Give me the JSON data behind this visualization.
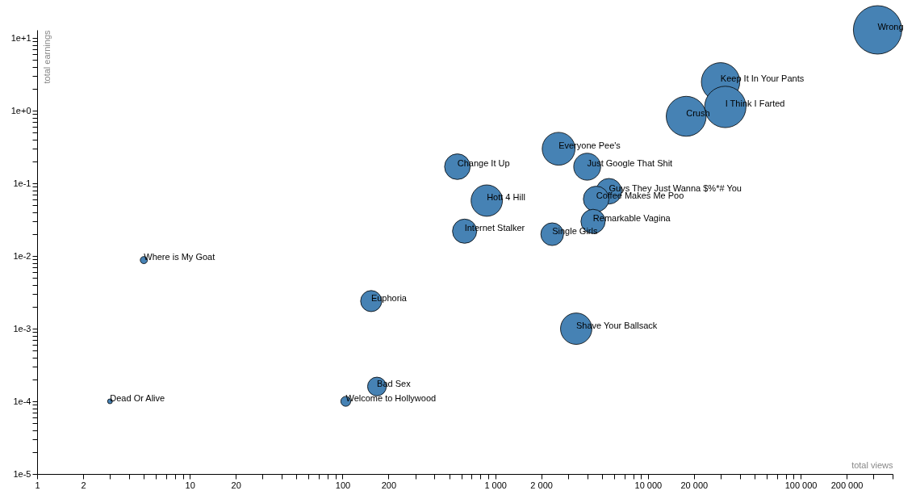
{
  "chart_data": {
    "type": "bubble",
    "xlabel": "total views",
    "ylabel": "total earnings",
    "log": "xy",
    "xlim": [
      1,
      400000
    ],
    "xticks": [
      1,
      2,
      {
        "value": 3,
        "label": null
      },
      {
        "value": 4,
        "label": null
      },
      {
        "value": 5,
        "label": null
      },
      {
        "value": 6,
        "label": null
      },
      {
        "value": 7,
        "label": null
      },
      {
        "value": 8,
        "label": null
      },
      {
        "value": 9,
        "label": null
      },
      10,
      20,
      {
        "value": 30,
        "label": null
      },
      {
        "value": 40,
        "label": null
      },
      {
        "value": 50,
        "label": null
      },
      {
        "value": 60,
        "label": null
      },
      {
        "value": 70,
        "label": null
      },
      {
        "value": 80,
        "label": null
      },
      {
        "value": 90,
        "label": null
      },
      100,
      200,
      {
        "value": 300,
        "label": null
      },
      {
        "value": 400,
        "label": null
      },
      {
        "value": 500,
        "label": null
      },
      {
        "value": 600,
        "label": null
      },
      {
        "value": 700,
        "label": null
      },
      {
        "value": 800,
        "label": null
      },
      {
        "value": 900,
        "label": null
      },
      {
        "value": 1000,
        "label": "1 000"
      },
      {
        "value": 2000,
        "label": "2 000"
      },
      {
        "value": 3000,
        "label": null
      },
      {
        "value": 4000,
        "label": null
      },
      {
        "value": 5000,
        "label": null
      },
      {
        "value": 6000,
        "label": null
      },
      {
        "value": 7000,
        "label": null
      },
      {
        "value": 8000,
        "label": null
      },
      {
        "value": 9000,
        "label": null
      },
      {
        "value": 10000,
        "label": "10 000"
      },
      {
        "value": 20000,
        "label": "20 000"
      },
      {
        "value": 30000,
        "label": null
      },
      {
        "value": 40000,
        "label": null
      },
      {
        "value": 50000,
        "label": null
      },
      {
        "value": 60000,
        "label": null
      },
      {
        "value": 70000,
        "label": null
      },
      {
        "value": 80000,
        "label": null
      },
      {
        "value": 90000,
        "label": null
      },
      {
        "value": 100000,
        "label": "100 000"
      },
      {
        "value": 200000,
        "label": "200 000"
      },
      {
        "value": 300000,
        "label": null
      },
      {
        "value": 400000,
        "label": null
      }
    ],
    "ylim": [
      1e-05,
      13
    ],
    "yticks": [
      {
        "value": 1e-05,
        "label": "1e-5"
      },
      {
        "value": 2e-05,
        "label": null
      },
      {
        "value": 3e-05,
        "label": null
      },
      {
        "value": 4e-05,
        "label": null
      },
      {
        "value": 5e-05,
        "label": null
      },
      {
        "value": 6e-05,
        "label": null
      },
      {
        "value": 7e-05,
        "label": null
      },
      {
        "value": 8e-05,
        "label": null
      },
      {
        "value": 9e-05,
        "label": null
      },
      {
        "value": 0.0001,
        "label": "1e-4"
      },
      {
        "value": 0.0002,
        "label": null
      },
      {
        "value": 0.0003,
        "label": null
      },
      {
        "value": 0.0004,
        "label": null
      },
      {
        "value": 0.0005,
        "label": null
      },
      {
        "value": 0.0006,
        "label": null
      },
      {
        "value": 0.0007,
        "label": null
      },
      {
        "value": 0.0008,
        "label": null
      },
      {
        "value": 0.0009,
        "label": null
      },
      {
        "value": 0.001,
        "label": "1e-3"
      },
      {
        "value": 0.002,
        "label": null
      },
      {
        "value": 0.003,
        "label": null
      },
      {
        "value": 0.004,
        "label": null
      },
      {
        "value": 0.005,
        "label": null
      },
      {
        "value": 0.006,
        "label": null
      },
      {
        "value": 0.007,
        "label": null
      },
      {
        "value": 0.008,
        "label": null
      },
      {
        "value": 0.009,
        "label": null
      },
      {
        "value": 0.01,
        "label": "1e-2"
      },
      {
        "value": 0.02,
        "label": null
      },
      {
        "value": 0.03,
        "label": null
      },
      {
        "value": 0.04,
        "label": null
      },
      {
        "value": 0.05,
        "label": null
      },
      {
        "value": 0.06,
        "label": null
      },
      {
        "value": 0.07,
        "label": null
      },
      {
        "value": 0.08,
        "label": null
      },
      {
        "value": 0.09,
        "label": null
      },
      {
        "value": 0.1,
        "label": "1e-1"
      },
      {
        "value": 0.2,
        "label": null
      },
      {
        "value": 0.3,
        "label": null
      },
      {
        "value": 0.4,
        "label": null
      },
      {
        "value": 0.5,
        "label": null
      },
      {
        "value": 0.6,
        "label": null
      },
      {
        "value": 0.7,
        "label": null
      },
      {
        "value": 0.8,
        "label": null
      },
      {
        "value": 0.9,
        "label": null
      },
      {
        "value": 1,
        "label": "1e+0"
      },
      {
        "value": 2,
        "label": null
      },
      {
        "value": 3,
        "label": null
      },
      {
        "value": 4,
        "label": null
      },
      {
        "value": 5,
        "label": null
      },
      {
        "value": 6,
        "label": null
      },
      {
        "value": 7,
        "label": null
      },
      {
        "value": 8,
        "label": null
      },
      {
        "value": 9,
        "label": null
      },
      {
        "value": 10,
        "label": "1e+1"
      }
    ],
    "series": [
      {
        "name": "Wrong",
        "color": "#4682b4",
        "x": [
          319000
        ],
        "values": [
          13
        ],
        "sizes": [
          1
        ]
      },
      {
        "name": "Keep It In Your Pants",
        "color": "#4682b4",
        "x": [
          29900
        ],
        "values": [
          2.5
        ],
        "sizes": [
          0.63
        ]
      },
      {
        "name": "I Think I Farted",
        "color": "#4682b4",
        "x": [
          32100
        ],
        "values": [
          1.13
        ],
        "sizes": [
          0.73
        ]
      },
      {
        "name": "Crush",
        "color": "#4682b4",
        "x": [
          17800
        ],
        "values": [
          0.84
        ],
        "sizes": [
          0.68
        ]
      },
      {
        "name": "Everyone Pee's",
        "color": "#4682b4",
        "x": [
          2600
        ],
        "values": [
          0.3
        ],
        "sizes": [
          0.46
        ]
      },
      {
        "name": "Just Google That Shit",
        "color": "#4682b4",
        "x": [
          4000
        ],
        "values": [
          0.17
        ],
        "sizes": [
          0.31
        ]
      },
      {
        "name": "Change It Up",
        "color": "#4682b4",
        "x": [
          565
        ],
        "values": [
          0.17
        ],
        "sizes": [
          0.28
        ]
      },
      {
        "name": "Hott 4 Hill",
        "color": "#4682b4",
        "x": [
          880
        ],
        "values": [
          0.058
        ],
        "sizes": [
          0.42
        ]
      },
      {
        "name": "Guys They Just Wanna $%*# You",
        "color": "#4682b4",
        "x": [
          5550
        ],
        "values": [
          0.078
        ],
        "sizes": [
          0.28
        ]
      },
      {
        "name": "Coffee Makes Me Poo",
        "color": "#4682b4",
        "x": [
          4580
        ],
        "values": [
          0.061
        ],
        "sizes": [
          0.28
        ]
      },
      {
        "name": "Remarkable Vagina",
        "color": "#4682b4",
        "x": [
          4370
        ],
        "values": [
          0.03
        ],
        "sizes": [
          0.25
        ]
      },
      {
        "name": "Internet Stalker",
        "color": "#4682b4",
        "x": [
          630
        ],
        "values": [
          0.022
        ],
        "sizes": [
          0.25
        ]
      },
      {
        "name": "Single Girls",
        "color": "#4682b4",
        "x": [
          2360
        ],
        "values": [
          0.02
        ],
        "sizes": [
          0.22
        ]
      },
      {
        "name": "Where is My Goat",
        "color": "#4682b4",
        "x": [
          5
        ],
        "values": [
          0.0088
        ],
        "sizes": [
          0.022
        ]
      },
      {
        "name": "Euphoria",
        "color": "#4682b4",
        "x": [
          154
        ],
        "values": [
          0.0024
        ],
        "sizes": [
          0.19
        ]
      },
      {
        "name": "Shave Your Ballsack",
        "color": "#4682b4",
        "x": [
          3390
        ],
        "values": [
          0.001
        ],
        "sizes": [
          0.42
        ]
      },
      {
        "name": "Bad Sex",
        "color": "#4682b4",
        "x": [
          168
        ],
        "values": [
          0.00016
        ],
        "sizes": [
          0.15
        ]
      },
      {
        "name": "Welcome to Hollywood",
        "color": "#4682b4",
        "x": [
          105
        ],
        "values": [
          0.0001
        ],
        "sizes": [
          0.042
        ]
      },
      {
        "name": "Dead Or Alive",
        "color": "#4682b4",
        "x": [
          3
        ],
        "values": [
          0.0001
        ],
        "sizes": [
          0.01
        ]
      }
    ]
  }
}
